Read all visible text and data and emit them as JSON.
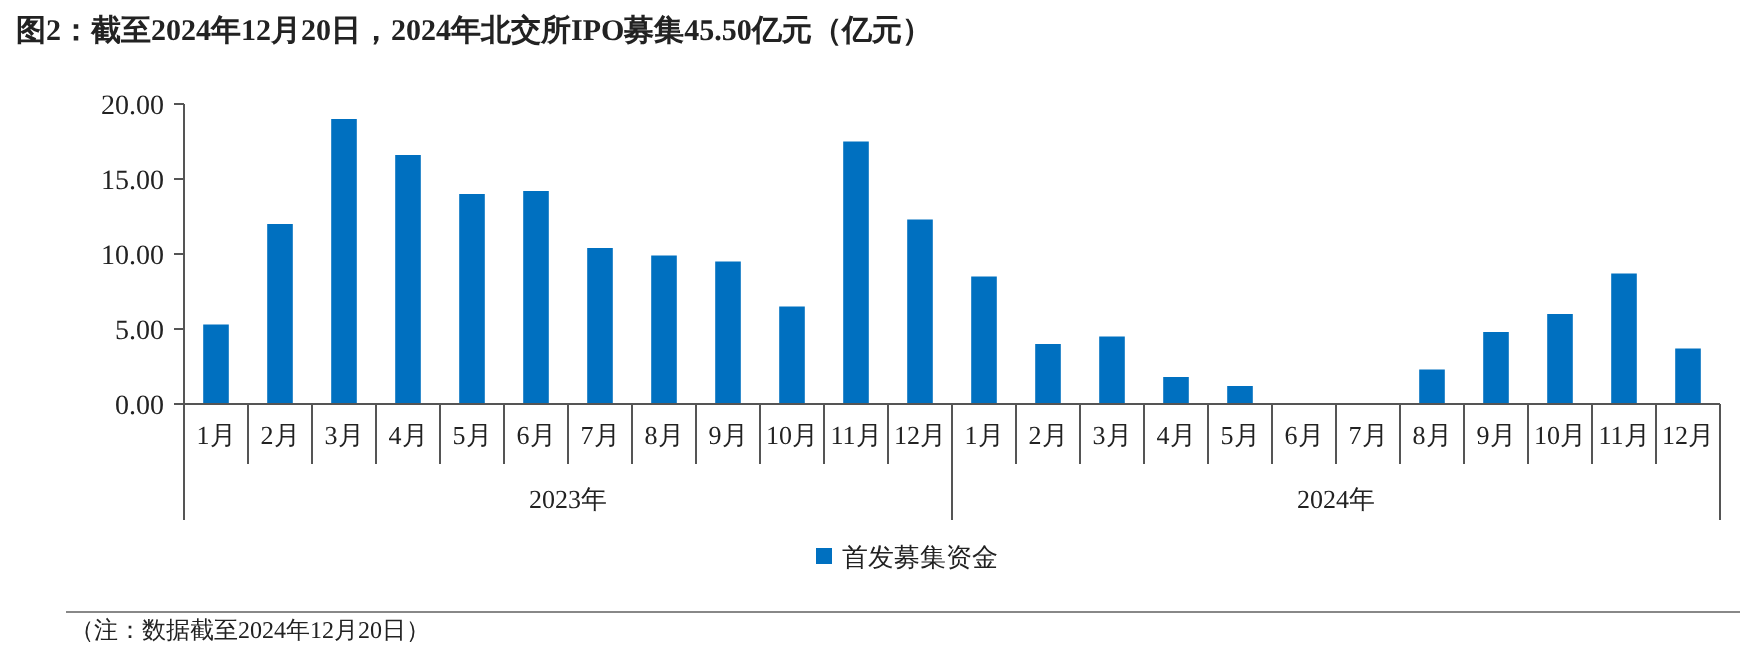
{
  "chart_data": {
    "type": "bar",
    "title": "图2：截至2024年12月20日，2024年北交所IPO募集45.50亿元（亿元）",
    "categories": [
      "1月",
      "2月",
      "3月",
      "4月",
      "5月",
      "6月",
      "7月",
      "8月",
      "9月",
      "10月",
      "11月",
      "12月",
      "1月",
      "2月",
      "3月",
      "4月",
      "5月",
      "6月",
      "7月",
      "8月",
      "9月",
      "10月",
      "11月",
      "12月"
    ],
    "series": [
      {
        "name": "首发募集资金",
        "color": "#0070c0",
        "values": [
          5.3,
          12.0,
          19.0,
          16.6,
          14.0,
          14.2,
          10.4,
          9.9,
          9.5,
          6.5,
          17.5,
          12.3,
          8.5,
          4.0,
          4.5,
          1.8,
          1.2,
          0,
          0,
          2.3,
          4.8,
          6.0,
          8.7,
          3.7
        ]
      }
    ],
    "ylim": [
      0,
      20
    ],
    "yticks": [
      {
        "value": 0,
        "label": "0.00"
      },
      {
        "value": 5,
        "label": "5.00"
      },
      {
        "value": 10,
        "label": "10.00"
      },
      {
        "value": 15,
        "label": "15.00"
      },
      {
        "value": 20,
        "label": "20.00"
      }
    ],
    "grid": false,
    "legend": "bottom",
    "annotations": [
      "2023年",
      "2024年",
      "（注：数据截至2024年12月20日）"
    ]
  }
}
